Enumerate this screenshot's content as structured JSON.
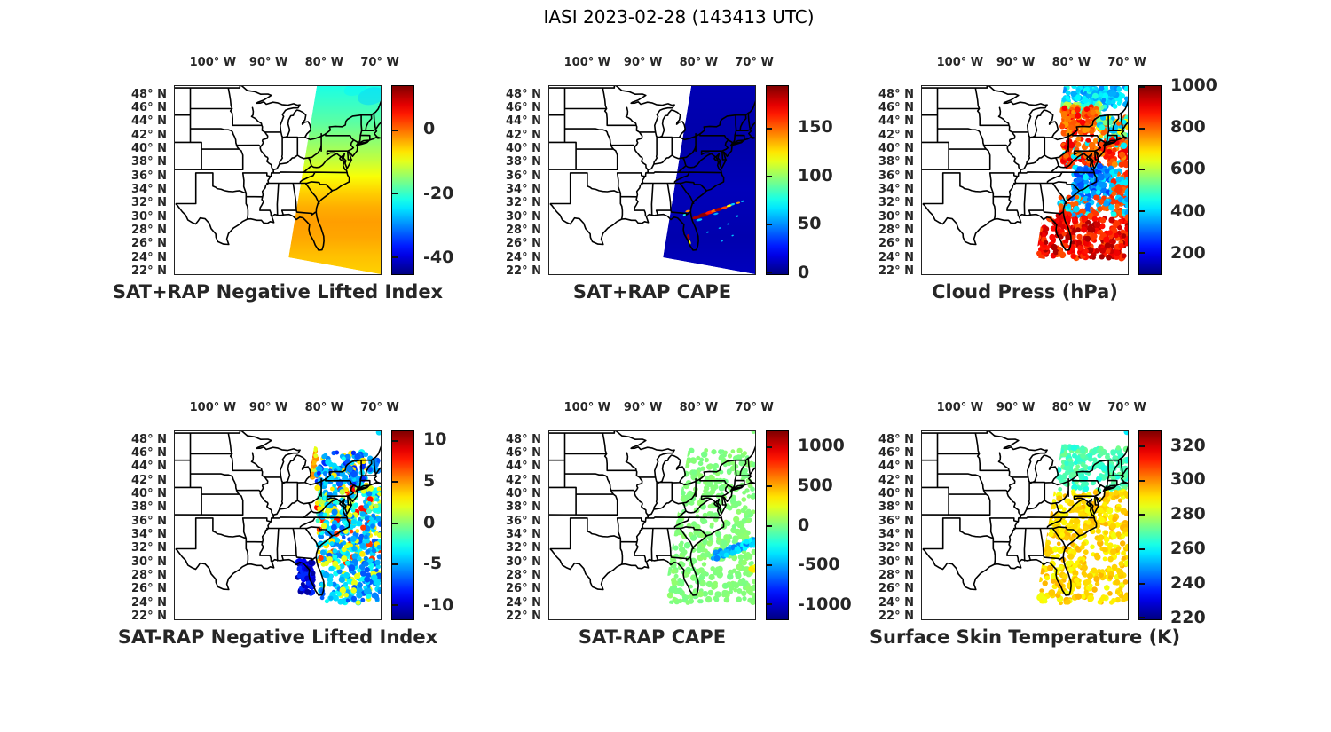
{
  "figure_title": "IASI 2023-02-28 (143413 UTC)",
  "chart_data": {
    "type": "scatter-map-grid",
    "colormap": "jet",
    "grid": {
      "rows": 2,
      "cols": 3
    },
    "axes": {
      "lon_ticks": [
        100,
        90,
        80,
        70
      ],
      "lon_suffix": "° W",
      "lat_ticks": [
        48,
        46,
        44,
        42,
        40,
        38,
        36,
        34,
        32,
        30,
        28,
        26,
        24,
        22
      ],
      "lat_suffix": "° N",
      "lon_range": [
        -107,
        -69.7
      ],
      "lat_range": [
        21.5,
        49.4
      ]
    },
    "swath_corners": [
      [
        -81.3,
        49.4
      ],
      [
        -69.7,
        49.4
      ],
      [
        -69.7,
        21.6
      ],
      [
        -86.4,
        24.1
      ]
    ],
    "panels": [
      {
        "title": "SAT+RAP Negative Lifted Index",
        "render": "field",
        "colorbar": {
          "min": -45.5,
          "max": 13.5,
          "ticks": [
            0,
            -20,
            -40
          ]
        },
        "field_stops": [
          [
            0,
            -22
          ],
          [
            0.1,
            -20
          ],
          [
            0.2,
            -18
          ],
          [
            0.3,
            -15
          ],
          [
            0.4,
            -12
          ],
          [
            0.48,
            -9
          ],
          [
            0.56,
            -6
          ],
          [
            0.64,
            -4
          ],
          [
            0.72,
            -3
          ],
          [
            0.8,
            -3.5
          ],
          [
            0.9,
            -5
          ],
          [
            1,
            -6
          ]
        ],
        "blobs": [
          {
            "lon": -71.5,
            "lat": 47.8,
            "w": 5,
            "h": 2.5,
            "v": -26,
            "o": 0.5
          },
          {
            "lon": -74.5,
            "lat": 48.8,
            "w": 4,
            "h": 1.8,
            "v": -24,
            "o": 0.4
          }
        ]
      },
      {
        "title": "SAT+RAP CAPE",
        "render": "field",
        "colorbar": {
          "min": -3,
          "max": 193,
          "ticks": [
            150,
            100,
            50,
            0
          ]
        },
        "field_stops": [
          [
            0,
            7
          ],
          [
            0.3,
            5
          ],
          [
            0.55,
            8
          ],
          [
            0.8,
            6
          ],
          [
            1,
            9
          ]
        ],
        "blobs": [
          {
            "lon": -80.3,
            "lat": 30.0,
            "w": 1.8,
            "h": 0.5,
            "v": 185
          },
          {
            "lon": -79.1,
            "lat": 30.35,
            "w": 2.0,
            "h": 0.6,
            "v": 190
          },
          {
            "lon": -78.0,
            "lat": 30.7,
            "w": 1.6,
            "h": 0.5,
            "v": 165
          },
          {
            "lon": -77.2,
            "lat": 30.95,
            "w": 1.2,
            "h": 0.45,
            "v": 150
          },
          {
            "lon": -76.4,
            "lat": 31.15,
            "w": 1.5,
            "h": 0.5,
            "v": 185
          },
          {
            "lon": -75.4,
            "lat": 31.4,
            "w": 1.2,
            "h": 0.4,
            "v": 155
          },
          {
            "lon": -74.5,
            "lat": 31.7,
            "w": 1.0,
            "h": 0.35,
            "v": 120
          },
          {
            "lon": -79.9,
            "lat": 29.6,
            "w": 1.1,
            "h": 0.35,
            "v": 60
          },
          {
            "lon": -76.9,
            "lat": 30.5,
            "w": 0.9,
            "h": 0.3,
            "v": 55
          },
          {
            "lon": -73.9,
            "lat": 31.9,
            "w": 0.8,
            "h": 0.3,
            "v": 60
          },
          {
            "lon": -72.9,
            "lat": 32.1,
            "w": 0.7,
            "h": 0.28,
            "v": 140
          },
          {
            "lon": -72.1,
            "lat": 32.35,
            "w": 0.6,
            "h": 0.25,
            "v": 60
          },
          {
            "lon": -81.85,
            "lat": 27.1,
            "w": 0.45,
            "h": 0.8,
            "v": 185
          },
          {
            "lon": -81.6,
            "lat": 26.3,
            "w": 0.35,
            "h": 0.6,
            "v": 120
          },
          {
            "lon": -81.95,
            "lat": 30.9,
            "w": 0.9,
            "h": 0.3,
            "v": 145
          },
          {
            "lon": -82.55,
            "lat": 30.35,
            "w": 0.55,
            "h": 0.25,
            "v": 75
          },
          {
            "lon": -78.4,
            "lat": 27.8,
            "w": 0.5,
            "h": 0.22,
            "v": 60
          },
          {
            "lon": -76.2,
            "lat": 28.4,
            "w": 0.5,
            "h": 0.22,
            "v": 55
          },
          {
            "lon": -74.7,
            "lat": 29.0,
            "w": 0.5,
            "h": 0.22,
            "v": 60
          },
          {
            "lon": -73.1,
            "lat": 30.15,
            "w": 0.55,
            "h": 0.25,
            "v": 65
          },
          {
            "lon": -75.8,
            "lat": 26.5,
            "w": 0.4,
            "h": 0.2,
            "v": 55
          },
          {
            "lon": -73.9,
            "lat": 27.3,
            "w": 0.4,
            "h": 0.2,
            "v": 60
          }
        ]
      },
      {
        "title": "Cloud Press (hPa)",
        "render": "dots",
        "dot_r": 3,
        "colorbar": {
          "min": 93,
          "max": 1000,
          "ticks": [
            1000,
            800,
            600,
            400,
            200
          ]
        },
        "regions": [
          {
            "lat": [
              46,
              49.3
            ],
            "lon": [
              -81.6,
              -69.8
            ],
            "n": 160,
            "values": [
              330,
              360,
              400,
              430,
              390,
              460,
              350,
              420
            ]
          },
          {
            "lat": [
              44.8,
              46.6
            ],
            "lon": [
              -82.3,
              -74.5
            ],
            "n": 70,
            "values": [
              430,
              480,
              520,
              560,
              600,
              450
            ]
          },
          {
            "lat": [
              42,
              46.3
            ],
            "lon": [
              -81.8,
              -75.2
            ],
            "n": 110,
            "values": [
              800,
              830,
              860,
              780,
              810,
              890,
              750
            ]
          },
          {
            "lat": [
              41.5,
              44.8
            ],
            "lon": [
              -75.2,
              -69.8
            ],
            "n": 80,
            "values": [
              420,
              460,
              500,
              650,
              700,
              550,
              800,
              380
            ]
          },
          {
            "lat": [
              37.5,
              41.5
            ],
            "lon": [
              -81.5,
              -69.8
            ],
            "n": 170,
            "values": [
              810,
              840,
              870,
              790,
              900,
              760,
              830,
              420
            ]
          },
          {
            "lat": [
              33,
              37.5
            ],
            "lon": [
              -79.5,
              -72.8
            ],
            "n": 150,
            "values": [
              260,
              300,
              340,
              380,
              310,
              280,
              420
            ]
          },
          {
            "lat": [
              33,
              37
            ],
            "lon": [
              -72.8,
              -69.8
            ],
            "n": 55,
            "values": [
              800,
              840,
              420,
              860,
              380
            ]
          },
          {
            "lat": [
              30,
              33
            ],
            "lon": [
              -82,
              -69.8
            ],
            "n": 120,
            "values": [
              350,
              400,
              800,
              300,
              840,
              450,
              380,
              820
            ]
          },
          {
            "lat": [
              24,
              30
            ],
            "lon": [
              -86.2,
              -69.8
            ],
            "n": 260,
            "values": [
              840,
              870,
              900,
              930,
              820,
              960,
              880
            ]
          },
          {
            "lat": [
              28.5,
              30.5
            ],
            "lon": [
              -82.5,
              -80.5
            ],
            "n": 25,
            "values": [
              860,
              890,
              920
            ]
          }
        ],
        "gaps": []
      },
      {
        "title": "SAT-RAP Negative Lifted Index",
        "render": "dots",
        "dot_r": 2.9,
        "colorbar": {
          "min": -11.8,
          "max": 11.1,
          "ticks": [
            10,
            5,
            0,
            -5,
            -10
          ]
        },
        "regions": [
          {
            "lat": [
              42.5,
              46.8
            ],
            "lon": [
              -82.9,
              -81.3
            ],
            "n": 55,
            "values": [
              2,
              3,
              4,
              1,
              5,
              3,
              7
            ]
          },
          {
            "lat": [
              41,
              46.2
            ],
            "lon": [
              -81.3,
              -72.3
            ],
            "n": 130,
            "values": [
              -5,
              -6,
              -4,
              -7,
              -3,
              -5,
              3,
              -8
            ]
          },
          {
            "lat": [
              43,
              45.3
            ],
            "lon": [
              -72.3,
              -70.2
            ],
            "n": 20,
            "values": [
              -6,
              -7,
              -5,
              -4
            ]
          },
          {
            "lat": [
              36,
              41
            ],
            "lon": [
              -81.3,
              -69.8
            ],
            "n": 180,
            "values": [
              -4,
              -3,
              -5,
              2,
              3,
              -6,
              1,
              -2,
              8
            ]
          },
          {
            "lat": [
              30,
              36
            ],
            "lon": [
              -81,
              -69.8
            ],
            "n": 220,
            "values": [
              -4,
              -5,
              -3,
              -6,
              3,
              2,
              -7,
              -4,
              7
            ]
          },
          {
            "lat": [
              25.5,
              30.2
            ],
            "lon": [
              -84.8,
              -81.9
            ],
            "n": 75,
            "values": [
              -10,
              -11,
              -9,
              -10,
              -8
            ]
          },
          {
            "lat": [
              24,
              30
            ],
            "lon": [
              -80.6,
              -69.8
            ],
            "n": 170,
            "values": [
              -4,
              -5,
              -3,
              -6,
              -7,
              2,
              -4
            ]
          },
          {
            "lat": [
              48.9,
              49.2
            ],
            "lon": [
              -70.3,
              -69.9
            ],
            "n": 1,
            "values": [
              -4
            ]
          }
        ],
        "gaps": [
          {
            "lat": [
              24.5,
              28.0
            ],
            "lon": [
              -80.2,
              -79.0
            ]
          }
        ]
      },
      {
        "title": "SAT-RAP CAPE",
        "render": "dots",
        "dot_r": 2.9,
        "colorbar": {
          "min": -1200,
          "max": 1190,
          "ticks": [
            1000,
            500,
            0,
            -500,
            -1000
          ]
        },
        "regions": [
          {
            "lat": [
              24,
              46.5
            ],
            "lon": [
              -85.5,
              -69.8
            ],
            "n": 520,
            "values": [
              0,
              15,
              -15,
              25,
              -25,
              5,
              -5,
              35
            ]
          },
          {
            "lat": [
              30.2,
              31.2
            ],
            "lon": [
              -77.8,
              -69.8
            ],
            "n": 60,
            "values": [
              -350,
              -450,
              -550,
              -300,
              -600,
              -400
            ],
            "tilt": 0.3
          },
          {
            "lat": [
              28.6,
              29.4
            ],
            "lon": [
              -70.6,
              -69.8
            ],
            "n": 7,
            "values": [
              280,
              350
            ]
          },
          {
            "lat": [
              48.9,
              49.3
            ],
            "lon": [
              -70.2,
              -69.8
            ],
            "n": 1,
            "values": [
              0
            ]
          }
        ],
        "gaps": [
          {
            "lat": [
              29.2,
              30.4
            ],
            "lon": [
              -78.2,
              -73.4
            ]
          }
        ]
      },
      {
        "title": "Surface Skin Temperature (K)",
        "render": "dots",
        "dot_r": 3,
        "colorbar": {
          "min": 218.5,
          "max": 328.5,
          "ticks": [
            320,
            300,
            280,
            260,
            240,
            220
          ]
        },
        "regions": [
          {
            "lat": [
              40.5,
              47.0
            ],
            "lon": [
              -83.5,
              -69.8
            ],
            "n": 190,
            "values": [
              265,
              267,
              270,
              263,
              272,
              268
            ]
          },
          {
            "lat": [
              24,
              40.5
            ],
            "lon": [
              -85.8,
              -69.8
            ],
            "n": 480,
            "values": [
              289,
              291,
              293,
              288,
              286,
              295,
              292
            ]
          },
          {
            "lat": [
              48.9,
              49.3
            ],
            "lon": [
              -70.4,
              -69.9
            ],
            "n": 1,
            "values": [
              258
            ]
          }
        ],
        "gaps": [
          {
            "lat": [
              29.3,
              30.4
            ],
            "lon": [
              -77.6,
              -73.4
            ]
          }
        ]
      }
    ]
  }
}
